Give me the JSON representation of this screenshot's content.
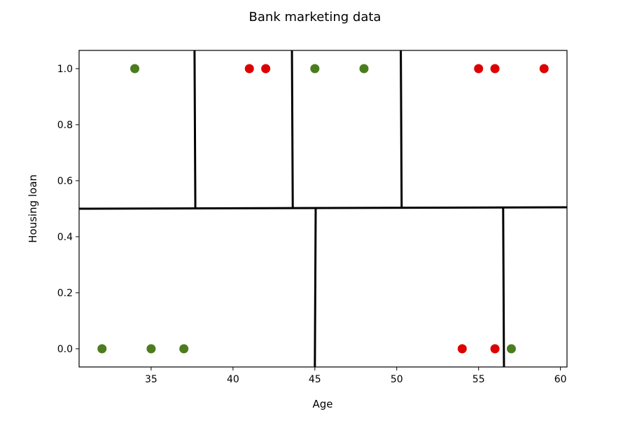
{
  "chart_data": {
    "type": "scatter",
    "title": "Bank marketing data",
    "xlabel": "Age",
    "ylabel": "Housing loan",
    "xlim": [
      30.6,
      60.4
    ],
    "ylim": [
      -0.065,
      1.065
    ],
    "xticks": [
      35,
      40,
      45,
      50,
      55,
      60
    ],
    "yticks": [
      0.0,
      0.2,
      0.4,
      0.6,
      0.8,
      1.0
    ],
    "xtick_labels": [
      "35",
      "40",
      "45",
      "50",
      "55",
      "60"
    ],
    "ytick_labels": [
      "0.0",
      "0.2",
      "0.4",
      "0.6",
      "0.8",
      "1.0"
    ],
    "grid": false,
    "colors": {
      "green": "#4a7d1e",
      "red": "#dd0000",
      "line": "#000000"
    },
    "points": [
      {
        "x": 34,
        "y": 1,
        "color": "green"
      },
      {
        "x": 41,
        "y": 1,
        "color": "red"
      },
      {
        "x": 42,
        "y": 1,
        "color": "red"
      },
      {
        "x": 45,
        "y": 1,
        "color": "green"
      },
      {
        "x": 48,
        "y": 1,
        "color": "green"
      },
      {
        "x": 55,
        "y": 1,
        "color": "red"
      },
      {
        "x": 56,
        "y": 1,
        "color": "red"
      },
      {
        "x": 59,
        "y": 1,
        "color": "red"
      },
      {
        "x": 32,
        "y": 0,
        "color": "green"
      },
      {
        "x": 35,
        "y": 0,
        "color": "green"
      },
      {
        "x": 37,
        "y": 0,
        "color": "green"
      },
      {
        "x": 54,
        "y": 0,
        "color": "red"
      },
      {
        "x": 56,
        "y": 0,
        "color": "red"
      },
      {
        "x": 57,
        "y": 0,
        "color": "green"
      }
    ],
    "boundary_lines": [
      {
        "x1": 30.6,
        "y1": 0.5,
        "x2": 60.4,
        "y2": 0.505
      },
      {
        "x1": 37.7,
        "y1": 0.5,
        "x2": 37.65,
        "y2": 1.065
      },
      {
        "x1": 43.65,
        "y1": 0.502,
        "x2": 43.6,
        "y2": 1.065
      },
      {
        "x1": 50.3,
        "y1": 0.503,
        "x2": 50.25,
        "y2": 1.065
      },
      {
        "x1": 45.05,
        "y1": 0.502,
        "x2": 45.0,
        "y2": -0.065
      },
      {
        "x1": 56.5,
        "y1": 0.504,
        "x2": 56.55,
        "y2": -0.065
      }
    ]
  }
}
